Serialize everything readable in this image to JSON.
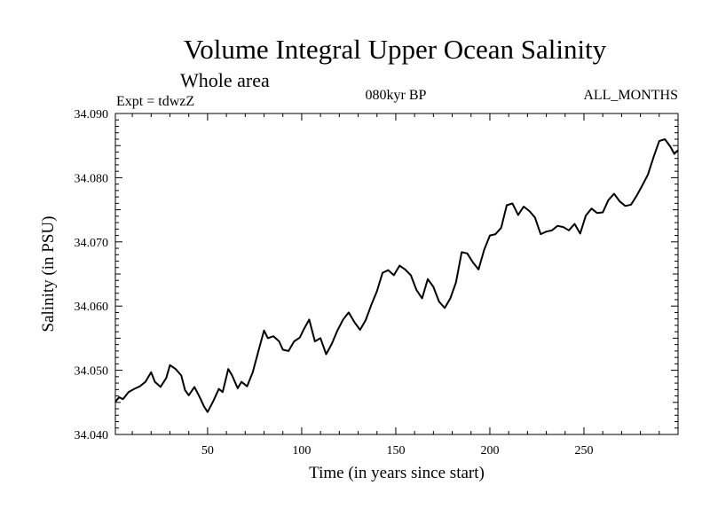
{
  "chart_data": {
    "type": "line",
    "title": "Volume Integral Upper Ocean Salinity",
    "subtitle": "Whole area",
    "annotations": {
      "left": "Expt = tdwzZ",
      "center": "080kyr BP",
      "right": "ALL_MONTHS"
    },
    "xlabel": "Time (in years since start)",
    "ylabel": "Salinity (in PSU)",
    "xlim": [
      1,
      300
    ],
    "ylim": [
      34.04,
      34.09
    ],
    "xticks": [
      50,
      100,
      150,
      200,
      250
    ],
    "yticks": [
      "34.040",
      "34.050",
      "34.060",
      "34.070",
      "34.080",
      "34.090"
    ],
    "grid": false,
    "series": [
      {
        "color": "#000000",
        "x": [
          1,
          3,
          5,
          8,
          11,
          14,
          17,
          20,
          22,
          25,
          28,
          30,
          33,
          36,
          38,
          40,
          43,
          46,
          48,
          50,
          53,
          56,
          58,
          61,
          63,
          66,
          68,
          71,
          74,
          77,
          80,
          82,
          85,
          88,
          90,
          93,
          96,
          99,
          101,
          104,
          107,
          110,
          113,
          116,
          119,
          122,
          125,
          128,
          131,
          134,
          137,
          140,
          143,
          146,
          149,
          152,
          155,
          158,
          161,
          164,
          167,
          170,
          173,
          176,
          179,
          182,
          185,
          188,
          191,
          194,
          197,
          200,
          203,
          206,
          209,
          212,
          215,
          218,
          221,
          224,
          227,
          230,
          233,
          236,
          239,
          242,
          245,
          248,
          251,
          254,
          257,
          260,
          263,
          266,
          269,
          272,
          275,
          278,
          281,
          284,
          287,
          290,
          293,
          296,
          298,
          300
        ],
        "values": [
          34.0451,
          34.0458,
          34.0455,
          34.0466,
          34.0471,
          34.0475,
          34.0482,
          34.0497,
          34.0482,
          34.0474,
          34.0488,
          34.0508,
          34.0502,
          34.0492,
          34.0469,
          34.0461,
          34.0474,
          34.0457,
          34.0444,
          34.0435,
          34.0452,
          34.0471,
          34.0466,
          34.0502,
          34.0492,
          34.0472,
          34.0482,
          34.0475,
          34.0497,
          34.053,
          34.0562,
          34.055,
          34.0553,
          34.0545,
          34.0532,
          34.053,
          34.0545,
          34.0551,
          34.0563,
          34.0579,
          34.0545,
          34.055,
          34.0525,
          34.0541,
          34.0562,
          34.0579,
          34.059,
          34.0575,
          34.0563,
          34.0578,
          34.0602,
          34.0623,
          34.0652,
          34.0656,
          34.0648,
          34.0663,
          34.0657,
          34.0648,
          34.0625,
          34.0612,
          34.0642,
          34.063,
          34.0607,
          34.0597,
          34.0612,
          34.0637,
          34.0684,
          34.0682,
          34.0668,
          34.0657,
          34.0688,
          34.071,
          34.0712,
          34.0722,
          34.0757,
          34.076,
          34.0742,
          34.0755,
          34.0748,
          34.0738,
          34.0712,
          34.0716,
          34.0718,
          34.0725,
          34.0723,
          34.0718,
          34.0728,
          34.0713,
          34.0741,
          34.0752,
          34.0745,
          34.0746,
          34.0765,
          34.0775,
          34.0763,
          34.0756,
          34.0758,
          34.0772,
          34.0788,
          34.0805,
          34.0832,
          34.0857,
          34.086,
          34.0848,
          34.0837,
          34.0843
        ]
      }
    ]
  }
}
